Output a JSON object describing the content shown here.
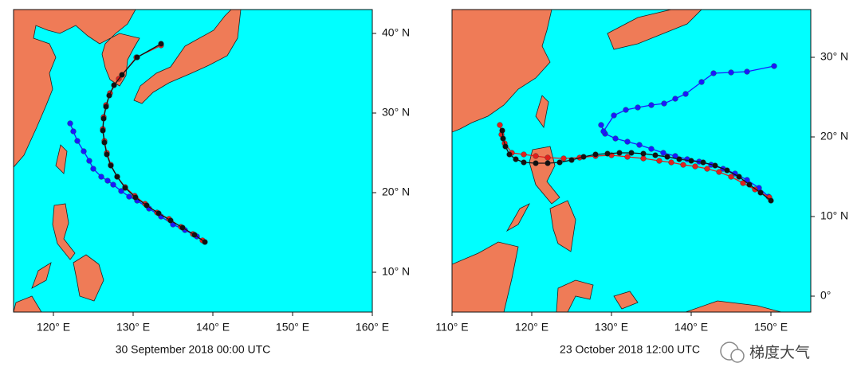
{
  "panels": [
    {
      "caption": "30 September 2018 00:00 UTC",
      "xlim": [
        115,
        160
      ],
      "ylim": [
        5,
        43
      ],
      "xticks": [
        {
          "value": 120,
          "label": "120° E"
        },
        {
          "value": 130,
          "label": "130° E"
        },
        {
          "value": 140,
          "label": "140° E"
        },
        {
          "value": 150,
          "label": "150° E"
        },
        {
          "value": 160,
          "label": "160° E"
        }
      ],
      "yticks": [
        {
          "value": 10,
          "label": "10° N"
        },
        {
          "value": 20,
          "label": "20° N"
        },
        {
          "value": 30,
          "label": "30° N"
        },
        {
          "value": 40,
          "label": "40° N"
        }
      ],
      "tracks": [
        {
          "color": "#1a1aff",
          "lon": [
            138,
            136.5,
            135,
            133.5,
            132,
            130.5,
            129.5,
            128.5,
            127.5,
            126.8,
            126,
            125,
            124.5,
            123.8,
            123,
            122.5,
            122.1
          ],
          "lat": [
            14.5,
            15.3,
            16,
            17,
            18,
            19,
            19.5,
            20.2,
            21,
            21.5,
            22,
            23,
            24,
            25.2,
            26.5,
            27.7,
            28.7
          ]
        },
        {
          "color": "#e0201c",
          "lon": [
            138.7,
            137.5,
            136,
            134.5,
            133,
            131.5,
            130.2,
            129,
            128,
            127.2,
            126.7,
            126.4,
            126.2,
            126.3,
            126.6,
            127.1,
            128.2,
            130.4,
            133.5
          ],
          "lat": [
            14,
            14.8,
            15.7,
            16.7,
            17.5,
            18.6,
            19.6,
            20.7,
            22,
            23.5,
            25,
            26.5,
            28,
            29.5,
            31,
            32.5,
            34.3,
            37,
            38.5
          ]
        },
        {
          "color": "#111111",
          "lon": [
            139,
            137.7,
            136.2,
            134.7,
            133.2,
            131.7,
            130.3,
            129,
            128,
            127.2,
            126.7,
            126.4,
            126.2,
            126.3,
            126.6,
            127,
            127.6,
            128.6,
            130.5,
            133.5
          ],
          "lat": [
            13.8,
            14.7,
            15.6,
            16.5,
            17.4,
            18.4,
            19.4,
            20.6,
            22,
            23.4,
            24.8,
            26.3,
            27.8,
            29.3,
            30.8,
            32.2,
            33.5,
            34.8,
            37,
            38.7
          ]
        }
      ]
    },
    {
      "caption": "23 October 2018 12:00 UTC",
      "xlim": [
        110,
        155
      ],
      "ylim": [
        -2,
        36
      ],
      "xticks": [
        {
          "value": 110,
          "label": "110° E"
        },
        {
          "value": 120,
          "label": "120° E"
        },
        {
          "value": 130,
          "label": "130° E"
        },
        {
          "value": 140,
          "label": "140° E"
        },
        {
          "value": 150,
          "label": "150° E"
        }
      ],
      "yticks": [
        {
          "value": 0,
          "label": "0°"
        },
        {
          "value": 10,
          "label": "10° N"
        },
        {
          "value": 20,
          "label": "20° N"
        },
        {
          "value": 30,
          "label": "30° N"
        }
      ],
      "tracks": [
        {
          "color": "#1a1aff",
          "lon": [
            149.7,
            148.5,
            147,
            145.5,
            144,
            142.5,
            141,
            139.5,
            138,
            136.5,
            135,
            133.5,
            132,
            130.5,
            129.2,
            128.7,
            129,
            130.3,
            131.8,
            133.3,
            135,
            136.6,
            138,
            139.3,
            141.3,
            142.8,
            145,
            147,
            150.4
          ],
          "lat": [
            12.5,
            13.6,
            14.6,
            15.4,
            16,
            16.5,
            16.9,
            17.2,
            17.6,
            18,
            18.5,
            19,
            19.4,
            19.8,
            20.4,
            21.5,
            20.7,
            22.7,
            23.4,
            23.7,
            24,
            24.2,
            24.8,
            25.4,
            26.9,
            28,
            28.1,
            28.2,
            28.9
          ]
        },
        {
          "color": "#e0201c",
          "lon": [
            149.8,
            148,
            146.5,
            145,
            143.5,
            142,
            140.5,
            139,
            137.5,
            136,
            134,
            132,
            130,
            128,
            126,
            124,
            122,
            120.5,
            119,
            117.5,
            116.6,
            116.2,
            116
          ],
          "lat": [
            12.4,
            13.4,
            14.2,
            15,
            15.6,
            16,
            16.3,
            16.5,
            16.8,
            17,
            17.3,
            17.5,
            17.7,
            17.6,
            17.4,
            17.3,
            17.4,
            17.6,
            17.8,
            18,
            19.2,
            20.3,
            21.5
          ]
        },
        {
          "color": "#111111",
          "lon": [
            150,
            148.7,
            147.3,
            146,
            144.5,
            143,
            141.5,
            140,
            138.5,
            137,
            135.5,
            134,
            132.5,
            131,
            129.5,
            128,
            126.5,
            125,
            123.5,
            122,
            120.5,
            119,
            118,
            117.2,
            116.7,
            116.4,
            116.3
          ],
          "lat": [
            12,
            13,
            14,
            15,
            15.8,
            16.4,
            16.8,
            17,
            17.2,
            17.5,
            17.7,
            17.9,
            18,
            18,
            17.9,
            17.8,
            17.5,
            17.1,
            16.8,
            16.7,
            16.7,
            16.8,
            17.2,
            17.8,
            18.8,
            19.8,
            20.8
          ]
        }
      ]
    }
  ],
  "watermark": "梯度大气"
}
